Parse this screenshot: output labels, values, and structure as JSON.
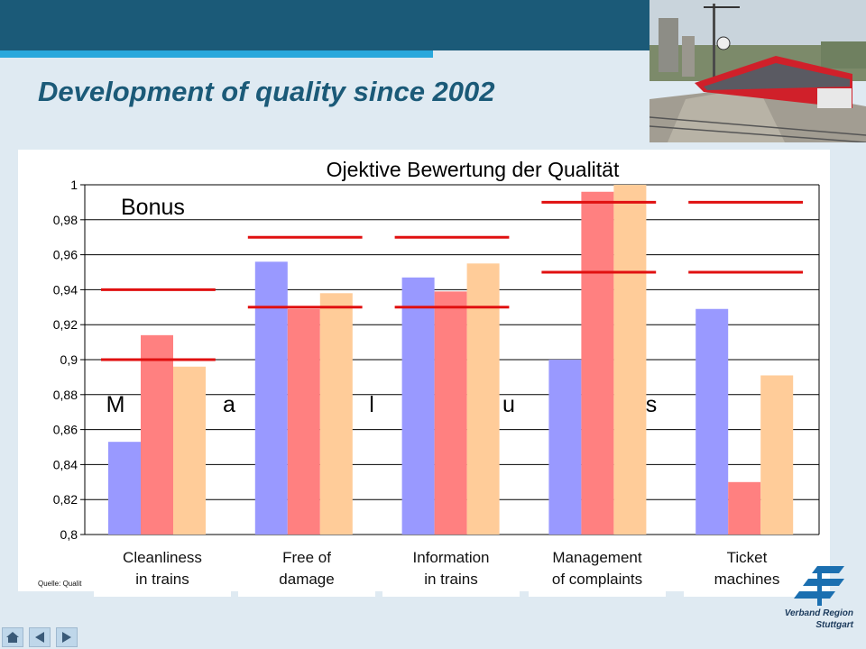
{
  "slide": {
    "title": "Development of quality since 2002",
    "source_note": "Quelle: Qualit"
  },
  "logo": {
    "line1": "Verband Region",
    "line2": "Stuttgart"
  },
  "colors": {
    "header_dark": "#1b5a78",
    "header_accent": "#29a8dc",
    "bar_series_1": "#9999ff",
    "bar_series_2": "#ff8080",
    "bar_series_3": "#ffcc99",
    "bonus_malus_line": "#e01010"
  },
  "nav": {
    "home_icon": "home-icon",
    "prev_icon": "arrow-left-icon",
    "next_icon": "arrow-right-icon"
  },
  "chart_data": {
    "type": "bar",
    "title": "Ojektive Bewertung der Qualität",
    "xlabel": "",
    "ylabel": "",
    "ylim": [
      0.8,
      1.0
    ],
    "ytick_labels": [
      "0,8",
      "0,82",
      "0,84",
      "0,86",
      "0,88",
      "0,9",
      "0,92",
      "0,94",
      "0,96",
      "0,98",
      "1"
    ],
    "grid": true,
    "categories": [
      "Cleanliness\nin trains",
      "Free of\ndamage",
      "Information\nin trains",
      "Management\nof complaints",
      "Ticket\nmachines"
    ],
    "series": [
      {
        "values": [
          0.853,
          0.956,
          0.947,
          0.9,
          0.929
        ]
      },
      {
        "values": [
          0.914,
          0.929,
          0.939,
          0.996,
          0.83
        ]
      },
      {
        "values": [
          0.896,
          0.938,
          0.955,
          1.0,
          0.891
        ]
      }
    ],
    "thresholds": [
      {
        "malus": 0.9,
        "bonus": 0.94
      },
      {
        "malus": 0.93,
        "bonus": 0.97
      },
      {
        "malus": 0.93,
        "bonus": 0.97
      },
      {
        "malus": 0.95,
        "bonus": 0.99
      },
      {
        "malus": 0.95,
        "bonus": 0.99
      }
    ],
    "annotations": {
      "bonus_label": "Bonus",
      "malus_letters": [
        "M",
        "a",
        "l",
        "u",
        "s"
      ]
    }
  }
}
